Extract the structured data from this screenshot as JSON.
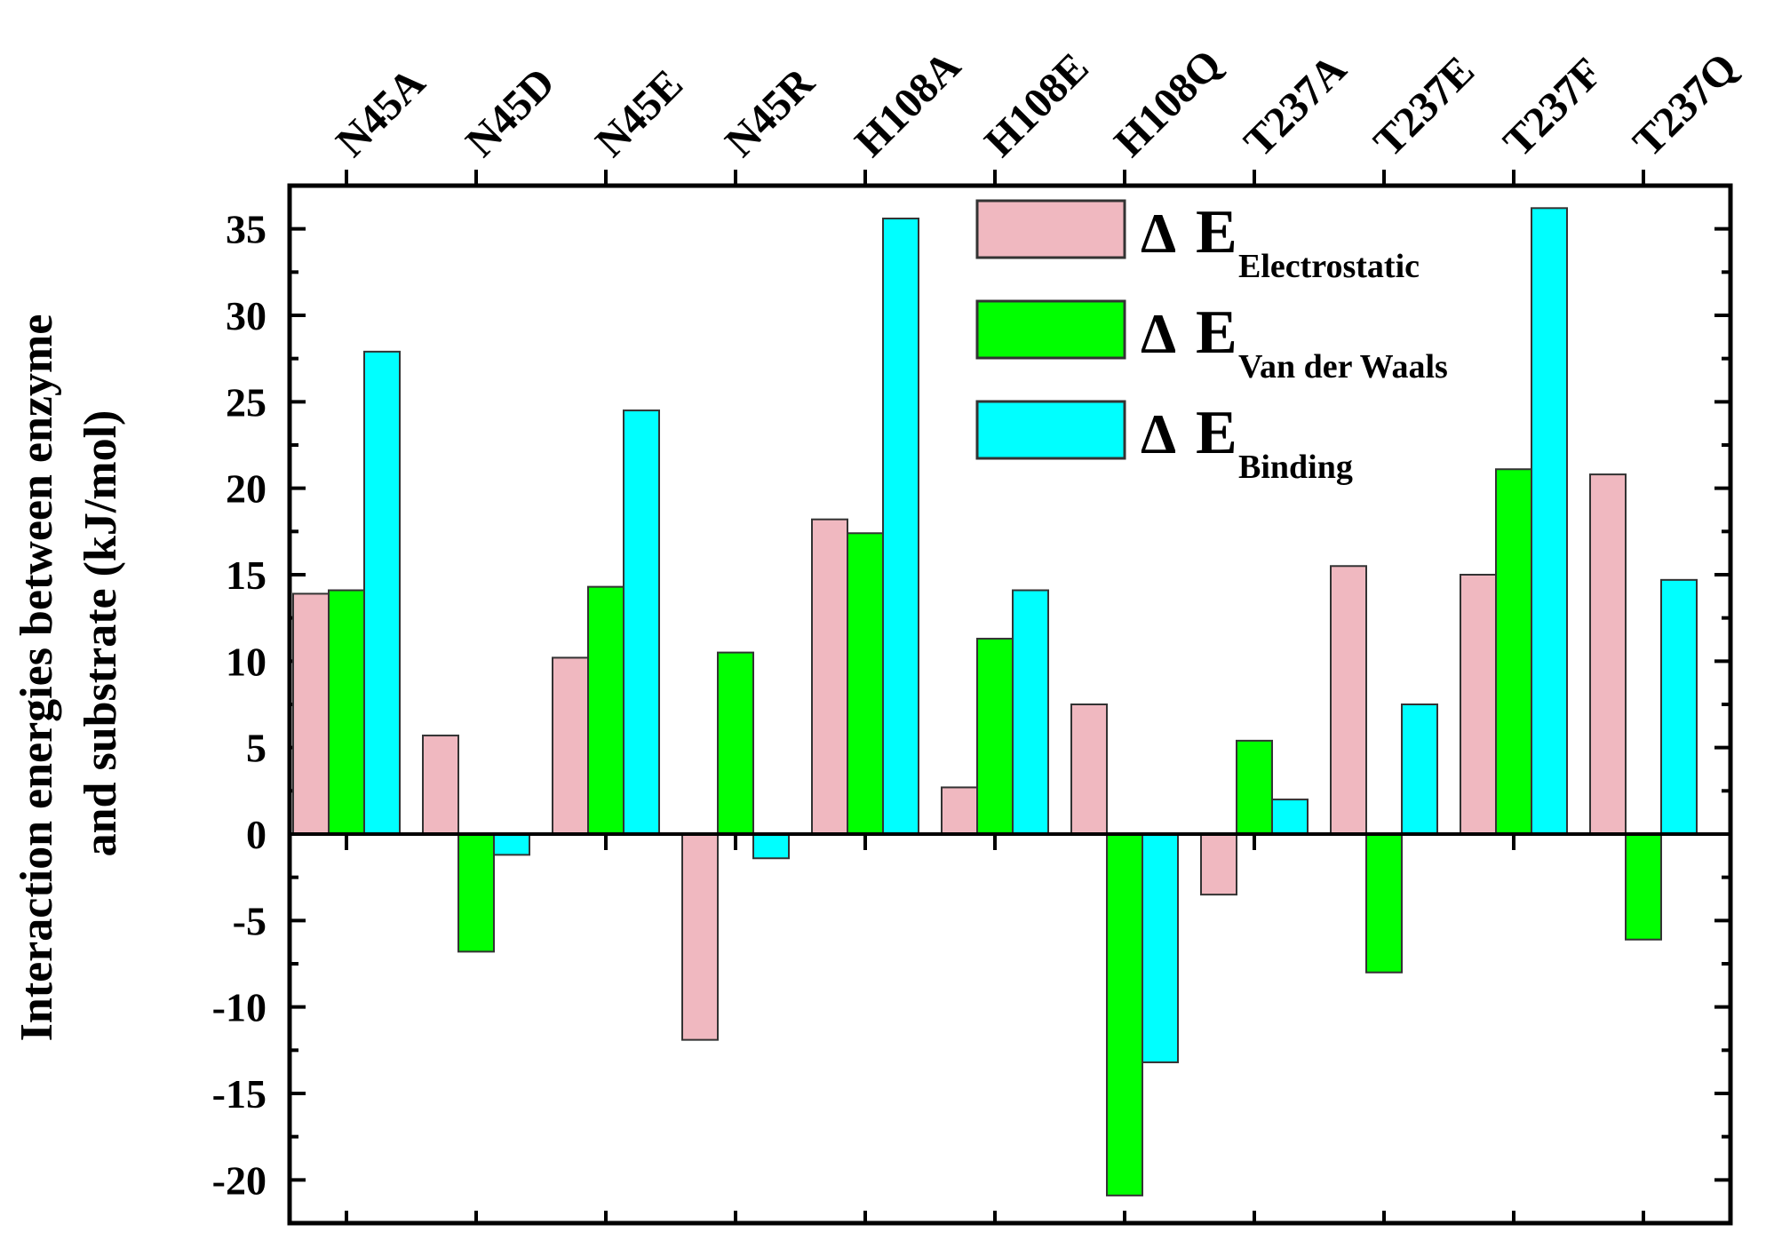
{
  "chart_data": {
    "type": "bar",
    "title": "",
    "xlabel": "",
    "ylabel_lines": [
      "Interaction energies between enzyme",
      "and substrate (kJ/mol)"
    ],
    "categories": [
      "N45A",
      "N45D",
      "N45E",
      "N45R",
      "H108A",
      "H108E",
      "H108Q",
      "T237A",
      "T237E",
      "T237F",
      "T237Q"
    ],
    "ylim": [
      -22.5,
      37.5
    ],
    "yticks": [
      35,
      30,
      25,
      20,
      15,
      10,
      5,
      0,
      -5,
      -10,
      -15,
      -20
    ],
    "ytick_labels": [
      "35",
      "30",
      "25",
      "20",
      "15",
      "10",
      "5",
      "0",
      "-5",
      "-10",
      "-15",
      "-20"
    ],
    "legend_position": "top-right",
    "delta_symbol": "Δ",
    "legend_main": "E",
    "series": [
      {
        "name": "Electrostatic",
        "color": "#f0b8c0",
        "values": [
          13.9,
          5.7,
          10.2,
          -11.9,
          18.2,
          2.7,
          7.5,
          -3.5,
          15.5,
          15.0,
          20.8
        ]
      },
      {
        "name": "Van der Waals",
        "color": "#00ff00",
        "values": [
          14.1,
          -6.8,
          14.3,
          10.5,
          17.4,
          11.3,
          -20.9,
          5.4,
          -8.0,
          21.1,
          -6.1
        ]
      },
      {
        "name": "Binding",
        "color": "#00ffff",
        "values": [
          27.9,
          -1.2,
          24.5,
          -1.4,
          35.6,
          14.1,
          -13.2,
          2.0,
          7.5,
          36.2,
          14.7
        ]
      }
    ]
  }
}
